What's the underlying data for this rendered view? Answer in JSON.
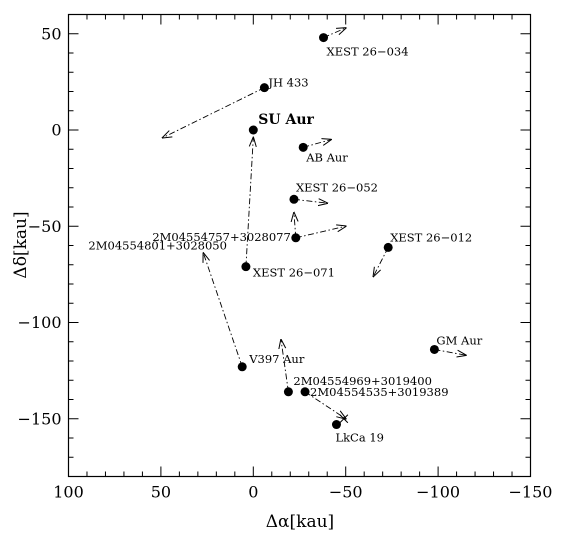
{
  "chart_data": {
    "type": "scatter",
    "title": "",
    "xlabel": "Δα[kau]",
    "ylabel": "Δδ[kau]",
    "xlim": [
      100,
      -150
    ],
    "ylim": [
      -180,
      60
    ],
    "xticks": [
      100,
      50,
      0,
      -50,
      -100,
      -150
    ],
    "yticks": [
      50,
      0,
      -50,
      -100,
      -150
    ],
    "xtick_labels": [
      "100",
      "50",
      "0",
      "−50",
      "−100",
      "−150"
    ],
    "ytick_labels": [
      "50",
      "0",
      "−50",
      "−100",
      "−150"
    ],
    "grid": false,
    "points": [
      {
        "label": "XEST 26−034",
        "x": -38,
        "y": 48
      },
      {
        "label": "JH 433",
        "x": -6,
        "y": 22
      },
      {
        "label": "SU Aur",
        "x": 0,
        "y": 0
      },
      {
        "label": "AB Aur",
        "x": -27,
        "y": -9
      },
      {
        "label": "XEST 26−052",
        "x": -22,
        "y": -36
      },
      {
        "label": "2M04554757+3028077",
        "x": -23,
        "y": -56
      },
      {
        "label": "2M04554801+3028050",
        "x": 4,
        "y": -71
      },
      {
        "label": "XEST 26−071",
        "x": 4,
        "y": -71
      },
      {
        "label": "XEST 26−012",
        "x": -73,
        "y": -61
      },
      {
        "label": "GM Aur",
        "x": -98,
        "y": -114
      },
      {
        "label": "V397 Aur",
        "x": 6,
        "y": -123
      },
      {
        "label": "2M04554969+3019400",
        "x": -19,
        "y": -136
      },
      {
        "label": "2M04554535+3019389",
        "x": -28,
        "y": -136
      },
      {
        "label": "LkCa 19",
        "x": -45,
        "y": -153
      }
    ],
    "arrows": [
      {
        "from": [
          -38,
          48
        ],
        "to": [
          -50,
          53
        ]
      },
      {
        "from": [
          -6,
          22
        ],
        "to": [
          49,
          -4
        ]
      },
      {
        "from": [
          -27,
          -9
        ],
        "to": [
          -42,
          -5
        ]
      },
      {
        "from": [
          -22,
          -36
        ],
        "to": [
          -40,
          -38
        ]
      },
      {
        "from": [
          -23,
          -56
        ],
        "to": [
          -50,
          -50
        ]
      },
      {
        "from": [
          -23,
          -56
        ],
        "to": [
          -22,
          -43
        ]
      },
      {
        "from": [
          4,
          -71
        ],
        "to": [
          0,
          -4
        ]
      },
      {
        "from": [
          -73,
          -61
        ],
        "to": [
          -65,
          -76
        ]
      },
      {
        "from": [
          -98,
          -114
        ],
        "to": [
          -115,
          -117
        ]
      },
      {
        "from": [
          6,
          -123
        ],
        "to": [
          27,
          -64
        ]
      },
      {
        "from": [
          -19,
          -136
        ],
        "to": [
          -15,
          -109
        ]
      },
      {
        "from": [
          -28,
          -136
        ],
        "to": [
          -50,
          -150
        ]
      }
    ],
    "cross_markers": [
      {
        "x": -49,
        "y": -150
      }
    ]
  }
}
